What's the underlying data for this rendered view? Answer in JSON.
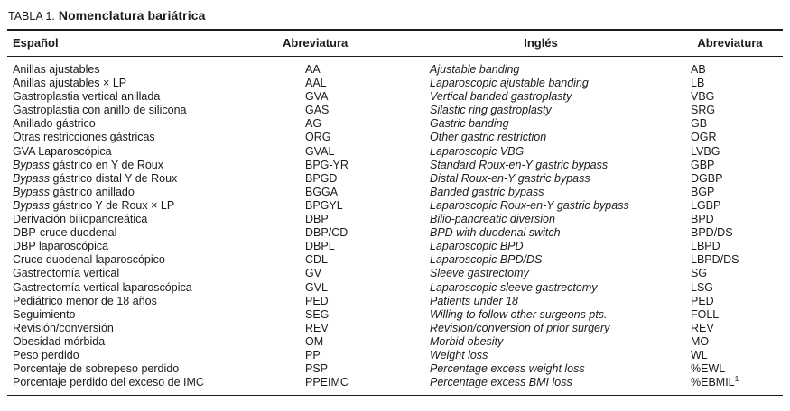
{
  "title": {
    "prefix": "TABLA 1.",
    "text": "Nomenclatura bariátrica"
  },
  "columns": [
    "Español",
    "Abreviatura",
    "Inglés",
    "Abreviatura"
  ],
  "rows": [
    {
      "es": "Anillas ajustables",
      "abr1": "AA",
      "en": "Ajustable banding",
      "abr2": "AB"
    },
    {
      "es": "Anillas ajustables × LP",
      "abr1": "AAL",
      "en": "Laparoscopic ajustable banding",
      "abr2": "LB"
    },
    {
      "es": "Gastroplastia vertical anillada",
      "abr1": "GVA",
      "en": "Vertical banded gastroplasty",
      "abr2": "VBG"
    },
    {
      "es": "Gastroplastia con anillo de silicona",
      "abr1": "GAS",
      "en": "Silastic ring gastroplasty",
      "abr2": "SRG"
    },
    {
      "es": "Anillado gástrico",
      "abr1": "AG",
      "en": "Gastric banding",
      "abr2": "GB"
    },
    {
      "es": "Otras restricciones gástricas",
      "abr1": "ORG",
      "en": "Other gastric restriction",
      "abr2": "OGR"
    },
    {
      "es": "GVA Laparoscópica",
      "abr1": "GVAL",
      "en": "Laparoscopic VBG",
      "abr2": "LVBG"
    },
    {
      "es": "Bypass gástrico en Y de Roux",
      "es_italic": "Bypass",
      "abr1": "BPG-YR",
      "en": "Standard Roux-en-Y gastric bypass",
      "abr2": "GBP"
    },
    {
      "es": "Bypass gástrico distal Y de Roux",
      "es_italic": "Bypass",
      "abr1": "BPGD",
      "en": "Distal Roux-en-Y gastric bypass",
      "abr2": "DGBP"
    },
    {
      "es": "Bypass gástrico anillado",
      "es_italic": "Bypass",
      "abr1": "BGGA",
      "en": "Banded gastric bypass",
      "abr2": "BGP"
    },
    {
      "es": "Bypass gástrico Y de Roux × LP",
      "es_italic": "Bypass",
      "abr1": "BPGYL",
      "en": "Laparoscopic Roux-en-Y gastric bypass",
      "abr2": "LGBP"
    },
    {
      "es": "Derivación biliopancreática",
      "abr1": "DBP",
      "en": "Bilio-pancreatic diversion",
      "abr2": "BPD"
    },
    {
      "es": "DBP-cruce duodenal",
      "abr1": "DBP/CD",
      "en": "BPD with duodenal switch",
      "abr2": "BPD/DS"
    },
    {
      "es": "DBP laparoscópica",
      "abr1": "DBPL",
      "en": "Laparoscopic BPD",
      "abr2": "LBPD"
    },
    {
      "es": "Cruce duodenal laparoscópico",
      "abr1": "CDL",
      "en": "Laparoscopic BPD/DS",
      "abr2": "LBPD/DS"
    },
    {
      "es": "Gastrectomía vertical",
      "abr1": "GV",
      "en": "Sleeve gastrectomy",
      "abr2": "SG"
    },
    {
      "es": "Gastrectomía vertical laparoscópica",
      "abr1": "GVL",
      "en": "Laparoscopic sleeve gastrectomy",
      "abr2": "LSG"
    },
    {
      "es": "Pediátrico menor de 18 años",
      "abr1": "PED",
      "en": "Patients under 18",
      "abr2": "PED"
    },
    {
      "es": "Seguimiento",
      "abr1": "SEG",
      "en": "Willing to follow other surgeons pts.",
      "abr2": "FOLL"
    },
    {
      "es": "Revisión/conversión",
      "abr1": "REV",
      "en": "Revision/conversion of prior surgery",
      "abr2": "REV"
    },
    {
      "es": "Obesidad mórbida",
      "abr1": "OM",
      "en": "Morbid obesity",
      "abr2": "MO"
    },
    {
      "es": "Peso perdido",
      "abr1": "PP",
      "en": "Weight loss",
      "abr2": "WL"
    },
    {
      "es": "Porcentaje de sobrepeso perdido",
      "abr1": "PSP",
      "en": "Percentage excess weight loss",
      "abr2": "%EWL"
    },
    {
      "es": "Porcentaje perdido del exceso de IMC",
      "abr1": "PPEIMC",
      "en": "Percentage excess BMI loss",
      "abr2": "%EBMIL",
      "abr2_sup": "1"
    }
  ],
  "colors": {
    "text": "#1b1b1b",
    "rule": "#1b1b1b",
    "background": "#ffffff"
  }
}
